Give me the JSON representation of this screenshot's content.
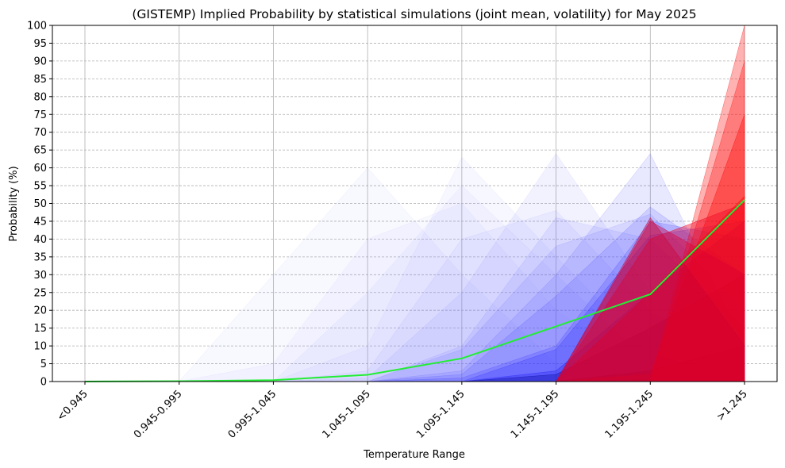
{
  "chart_data": {
    "type": "area",
    "title": "(GISTEMP) Implied Probability by statistical simulations (joint mean, volatility) for May 2025",
    "xlabel": "Temperature Range",
    "ylabel": "Probability (%)",
    "ylim": [
      0,
      100
    ],
    "yticks": [
      0,
      5,
      10,
      15,
      20,
      25,
      30,
      35,
      40,
      45,
      50,
      55,
      60,
      65,
      70,
      75,
      80,
      85,
      90,
      95,
      100
    ],
    "categories": [
      "<0.945",
      "0.945-0.995",
      "0.995-1.045",
      "1.045-1.095",
      "1.095-1.145",
      "1.145-1.195",
      "1.195-1.245",
      ">1.245"
    ],
    "grid": {
      "x": true,
      "y": "dashed"
    },
    "mean_line": {
      "color": "#22ee33",
      "values": [
        0,
        0.1,
        0.4,
        1.9,
        6.5,
        15.5,
        24.5,
        51
      ]
    },
    "simulations": [
      {
        "color": "#8a8aff",
        "opacity": 0.06,
        "values": [
          0,
          0,
          30,
          60,
          30,
          5,
          0,
          0
        ]
      },
      {
        "color": "#8a8aff",
        "opacity": 0.06,
        "values": [
          0,
          0,
          5,
          40,
          50,
          20,
          2,
          0
        ]
      },
      {
        "color": "#8a8aff",
        "opacity": 0.06,
        "values": [
          0,
          0,
          0,
          25,
          55,
          30,
          5,
          0
        ]
      },
      {
        "color": "#8a8aff",
        "opacity": 0.07,
        "values": [
          0,
          0,
          0,
          10,
          63,
          35,
          8,
          0
        ]
      },
      {
        "color": "#6f6fff",
        "opacity": 0.08,
        "values": [
          0,
          0,
          0,
          3,
          40,
          48,
          20,
          2
        ]
      },
      {
        "color": "#6f6fff",
        "opacity": 0.09,
        "values": [
          0,
          0,
          0,
          1,
          25,
          64,
          25,
          5
        ]
      },
      {
        "color": "#5a5aff",
        "opacity": 0.1,
        "values": [
          0,
          0,
          0,
          0,
          10,
          46,
          40,
          15
        ]
      },
      {
        "color": "#4a4aff",
        "opacity": 0.11,
        "values": [
          0,
          0,
          0,
          0,
          9,
          38,
          47,
          20
        ]
      },
      {
        "color": "#4040ff",
        "opacity": 0.12,
        "values": [
          0,
          0,
          0,
          0,
          3,
          30,
          64,
          10
        ]
      },
      {
        "color": "#3030ff",
        "opacity": 0.14,
        "values": [
          0,
          0,
          0,
          0,
          2,
          24,
          49,
          30
        ]
      },
      {
        "color": "#2020ff",
        "opacity": 0.16,
        "values": [
          0,
          0,
          0,
          0,
          1,
          10,
          45,
          40
        ]
      },
      {
        "color": "#1010ff",
        "opacity": 0.18,
        "values": [
          0,
          0,
          0,
          0,
          0,
          9,
          41,
          45
        ]
      },
      {
        "color": "#0000ee",
        "opacity": 0.22,
        "values": [
          0,
          0,
          0,
          0,
          0,
          3,
          25,
          45
        ]
      },
      {
        "color": "#000099",
        "opacity": 0.3,
        "values": [
          0,
          0,
          0,
          0,
          0,
          2,
          15,
          30
        ]
      },
      {
        "color": "#000055",
        "opacity": 0.3,
        "values": [
          0,
          0,
          0,
          0,
          0,
          0,
          3,
          10
        ]
      }
    ],
    "tail_simulations": [
      {
        "color": "#ff0000",
        "opacity": 0.3,
        "values": [
          0,
          0,
          0,
          0,
          0,
          0,
          0,
          100
        ]
      },
      {
        "color": "#ff0000",
        "opacity": 0.3,
        "values": [
          0,
          0,
          0,
          0,
          0,
          0,
          0,
          90
        ]
      },
      {
        "color": "#ff0000",
        "opacity": 0.35,
        "values": [
          0,
          0,
          0,
          0,
          0,
          0,
          2,
          75
        ]
      },
      {
        "color": "#ff0000",
        "opacity": 0.4,
        "values": [
          0,
          0,
          0,
          0,
          0,
          0,
          25,
          52
        ]
      },
      {
        "color": "#ee0022",
        "opacity": 0.4,
        "values": [
          0,
          0,
          0,
          0,
          0,
          0,
          40,
          50
        ]
      },
      {
        "color": "#dd0033",
        "opacity": 0.4,
        "values": [
          0,
          0,
          0,
          0,
          0,
          0,
          45,
          30
        ]
      },
      {
        "color": "#cc0033",
        "opacity": 0.4,
        "values": [
          0,
          0,
          0,
          0,
          0,
          0,
          46,
          10
        ]
      }
    ]
  }
}
